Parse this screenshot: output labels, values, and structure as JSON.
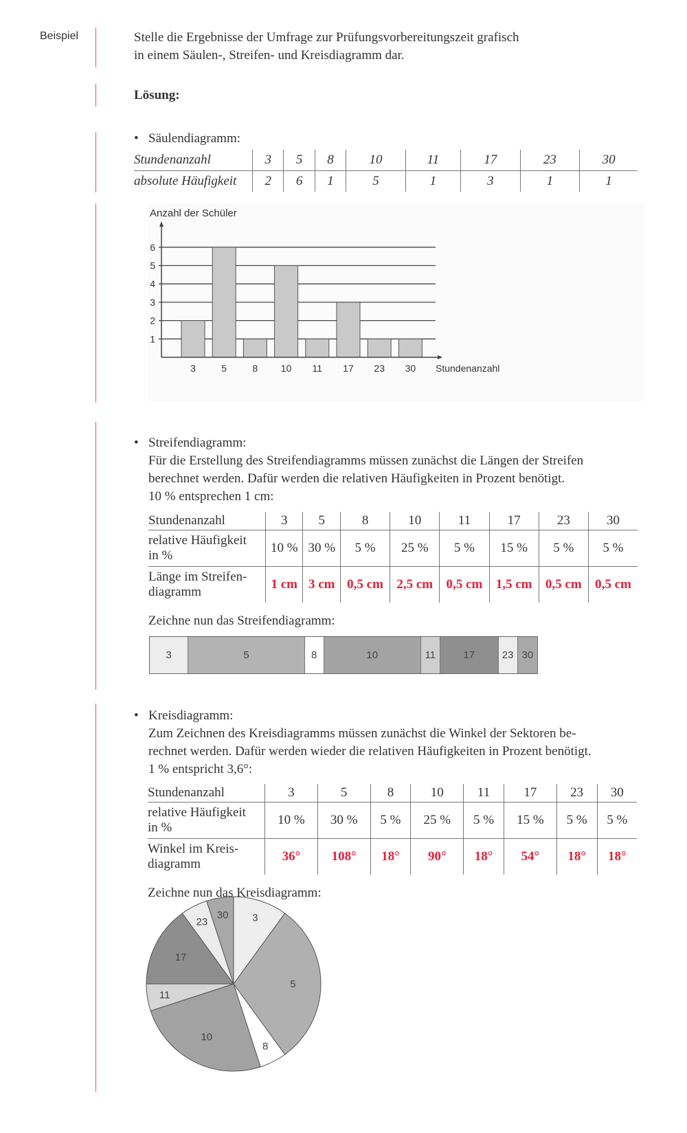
{
  "sidebar_label": "Beispiel",
  "task": [
    "Stelle die Ergebnisse der Umfrage zur Prüfungsvorbereitungszeit grafisch",
    "in einem Säulen-, Streifen- und Kreisdiagramm dar."
  ],
  "solution_heading": "Lösung:",
  "bar_section": {
    "title": "Säulendiagramm:",
    "table": {
      "row_labels": [
        "Stundenanzahl",
        "absolute Häufigkeit"
      ],
      "hours": [
        "3",
        "5",
        "8",
        "10",
        "11",
        "17",
        "23",
        "30"
      ],
      "abs_freq": [
        "2",
        "6",
        "1",
        "5",
        "1",
        "3",
        "1",
        "1"
      ]
    }
  },
  "chart_data": [
    {
      "type": "bar",
      "categories": [
        "3",
        "5",
        "8",
        "10",
        "11",
        "17",
        "23",
        "30"
      ],
      "values": [
        2,
        6,
        1,
        5,
        1,
        3,
        1,
        1
      ],
      "xlabel": "Stundenanzahl",
      "ylabel": "Anzahl der Schüler",
      "yticks": [
        "1",
        "2",
        "3",
        "4",
        "5",
        "6"
      ],
      "ylim": [
        0,
        6
      ],
      "grid": true
    },
    {
      "type": "bar",
      "orientation": "stacked-strip",
      "categories": [
        "3",
        "5",
        "8",
        "10",
        "11",
        "17",
        "23",
        "30"
      ],
      "values": [
        10,
        30,
        5,
        25,
        5,
        15,
        5,
        5
      ],
      "colors": [
        "#ededed",
        "#b3b3b3",
        "#ffffff",
        "#a3a3a3",
        "#cfcfcf",
        "#8f8f8f",
        "#ededed",
        "#a8a8a8"
      ]
    },
    {
      "type": "pie",
      "categories": [
        "3",
        "5",
        "8",
        "10",
        "11",
        "17",
        "23",
        "30"
      ],
      "values": [
        36,
        108,
        18,
        90,
        18,
        54,
        18,
        18
      ],
      "colors": [
        "#eeeeee",
        "#b0b0b0",
        "#ffffff",
        "#a2a2a2",
        "#d6d6d6",
        "#8e8e8e",
        "#ececec",
        "#a8a8a8"
      ]
    }
  ],
  "strip_section": {
    "title": "Streifendiagramm:",
    "text": [
      "Für die Erstellung des Streifendiagramms müssen zunächst die Längen der Streifen",
      "berechnet werden. Dafür werden die relativen Häufigkeiten in Prozent benötigt.",
      "10 % entsprechen 1 cm:"
    ],
    "row_labels": [
      [
        "Stundenanzahl"
      ],
      [
        "relative Häufigkeit",
        "in %"
      ],
      [
        "Länge im Streifen-",
        "diagramm"
      ]
    ],
    "hours": [
      "3",
      "5",
      "8",
      "10",
      "11",
      "17",
      "23",
      "30"
    ],
    "rel": [
      "10 %",
      "30 %",
      "5 %",
      "25 %",
      "5 %",
      "15 %",
      "5 %",
      "5 %"
    ],
    "result": [
      "1 cm",
      "3 cm",
      "0,5 cm",
      "2,5 cm",
      "0,5 cm",
      "1,5 cm",
      "0,5 cm",
      "0,5 cm"
    ],
    "draw_prompt": "Zeichne nun das Streifendiagramm:"
  },
  "pie_section": {
    "title": "Kreisdiagramm:",
    "text": [
      "Zum Zeichnen des Kreisdiagramms müssen zunächst die Winkel der Sektoren be-",
      "rechnet werden. Dafür werden wieder die relativen Häufigkeiten in Prozent benötigt.",
      "1 % entspricht 3,6°:"
    ],
    "row_labels": [
      [
        "Stundenanzahl"
      ],
      [
        "relative Häufigkeit",
        "in %"
      ],
      [
        "Winkel im Kreis-",
        "diagramm"
      ]
    ],
    "hours": [
      "3",
      "5",
      "8",
      "10",
      "11",
      "17",
      "23",
      "30"
    ],
    "rel": [
      "10 %",
      "30 %",
      "5 %",
      "25 %",
      "5 %",
      "15 %",
      "5 %",
      "5 %"
    ],
    "result": [
      "36°",
      "108°",
      "18°",
      "90°",
      "18°",
      "54°",
      "18°",
      "18°"
    ],
    "draw_prompt": "Zeichne nun das Kreisdiagramm:"
  }
}
